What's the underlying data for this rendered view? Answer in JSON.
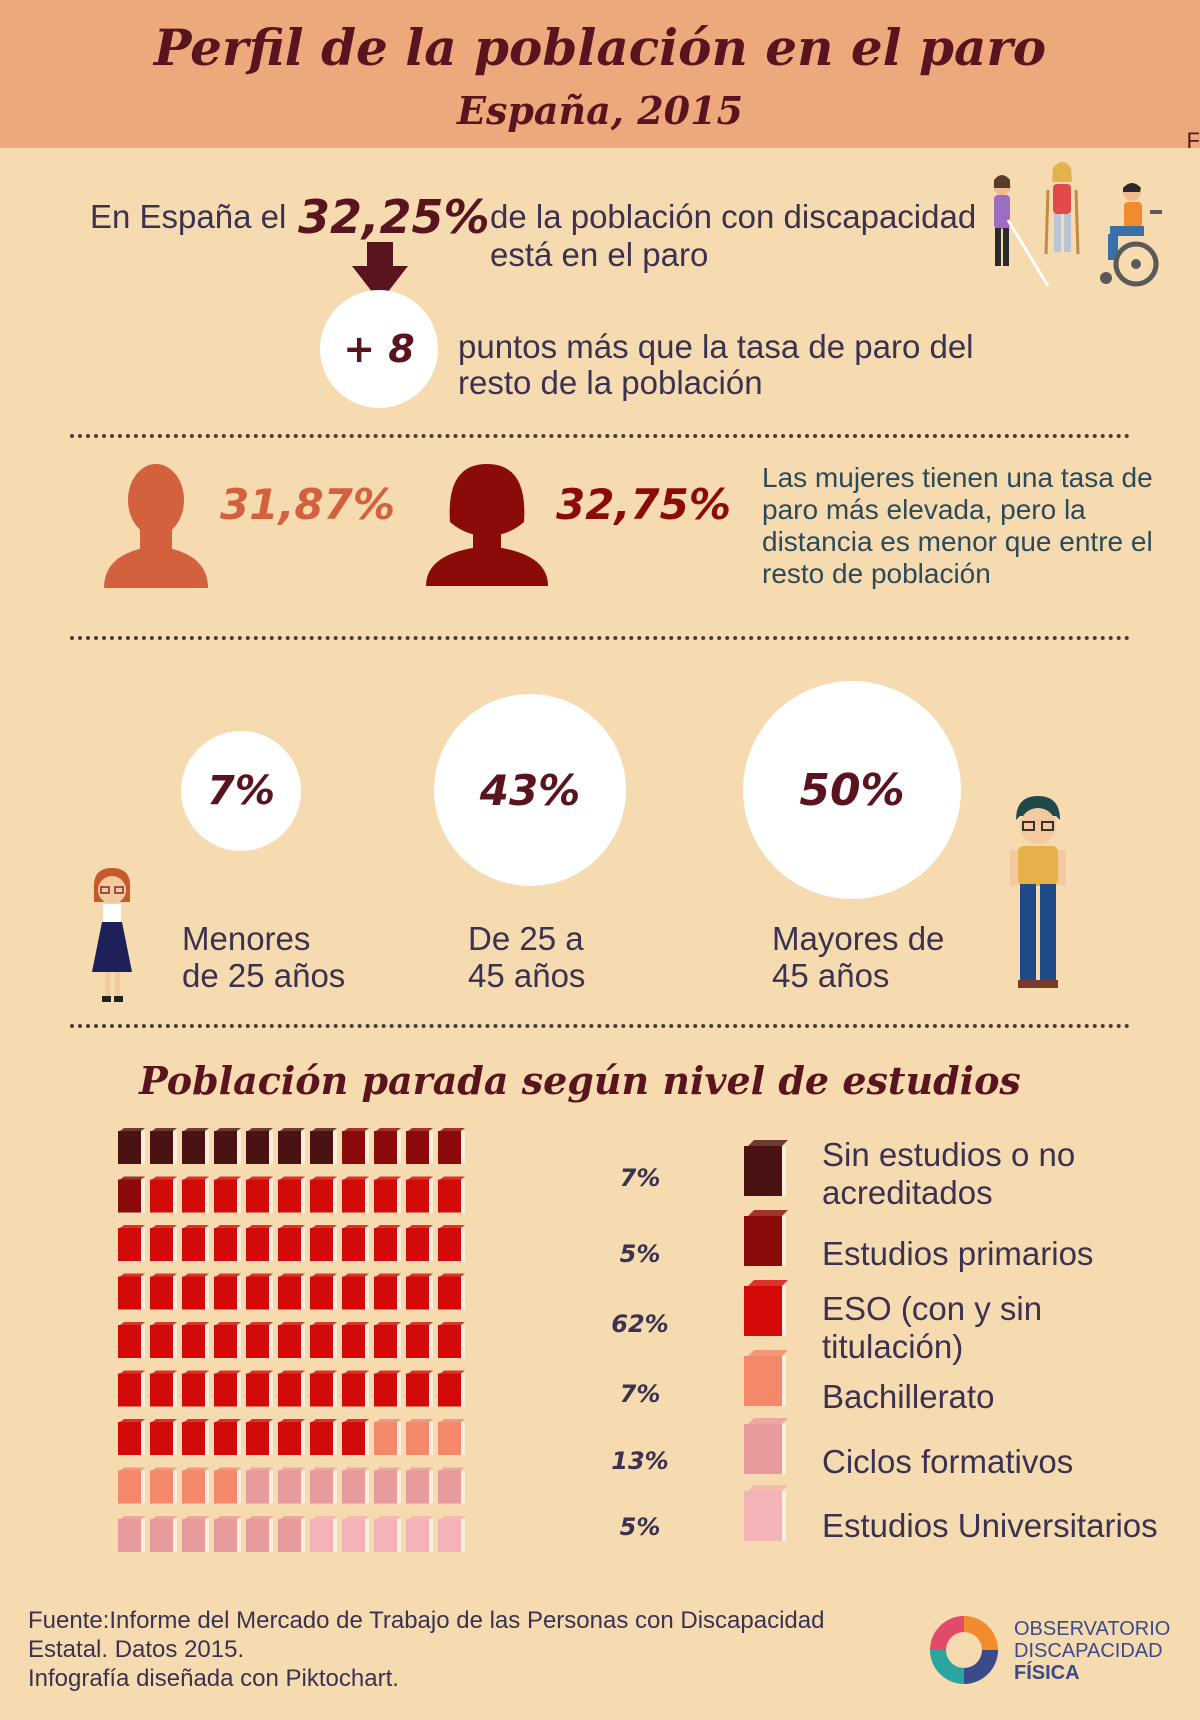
{
  "header": {
    "title": "Perfil de la población en el paro",
    "subtitle": "España, 2015",
    "corner_mark": "F"
  },
  "intro": {
    "prefix": "En España el",
    "percent": "32,25%",
    "suffix_line1": "de la población con discapacidad",
    "suffix_line2": "está en el paro",
    "delta_value": "+ 8",
    "delta_line1": "puntos más que la tasa de paro del",
    "delta_line2": "resto de la población"
  },
  "gender": {
    "male_percent": "31,87%",
    "female_percent": "32,75%",
    "note_lines": [
      "Las mujeres tienen una tasa de",
      "paro más elevada, pero la",
      "distancia es menor que entre el",
      "resto de población"
    ],
    "male_color": "#d4613e",
    "female_color": "#8b0a0a"
  },
  "age": {
    "groups": [
      {
        "percent": "7%",
        "label_line1": "Menores",
        "label_line2": "de 25 años"
      },
      {
        "percent": "43%",
        "label_line1": "De 25 a",
        "label_line2": "45 años"
      },
      {
        "percent": "50%",
        "label_line1": "Mayores de",
        "label_line2": "45 años"
      }
    ]
  },
  "studies": {
    "title": "Población parada según nivel de estudios",
    "legend": [
      {
        "percent": "7%",
        "label_lines": [
          "Sin estudios o no",
          "acreditados"
        ],
        "color": "#4a1212"
      },
      {
        "percent": "5%",
        "label_lines": [
          "Estudios primarios"
        ],
        "color": "#8b0a0a"
      },
      {
        "percent": "62%",
        "label_lines": [
          "ESO (con y sin",
          "titulación)"
        ],
        "color": "#d40a0a"
      },
      {
        "percent": "7%",
        "label_lines": [
          "Bachillerato"
        ],
        "color": "#f5876a"
      },
      {
        "percent": "13%",
        "label_lines": [
          "Ciclos formativos"
        ],
        "color": "#e89a9c"
      },
      {
        "percent": "5%",
        "label_lines": [
          "Estudios Universitarios"
        ],
        "color": "#f4b3b6"
      }
    ]
  },
  "chart_data": {
    "type": "bar",
    "title": "Población parada según nivel de estudios",
    "categories": [
      "Sin estudios o no acreditados",
      "Estudios primarios",
      "ESO (con y sin titulación)",
      "Bachillerato",
      "Ciclos formativos",
      "Estudios Universitarios"
    ],
    "values": [
      7,
      5,
      62,
      7,
      13,
      5
    ],
    "unit": "%",
    "waffle_counts": [
      7,
      5,
      62,
      7,
      13,
      5
    ]
  },
  "footer": {
    "source_lines": [
      "Fuente:Informe del Mercado de Trabajo de las Personas con Discapacidad",
      "Estatal. Datos 2015.",
      "Infografía diseñada con Piktochart."
    ],
    "logo_line1": "OBSERVATORIO",
    "logo_line2": "DISCAPACIDAD",
    "logo_line3": "FÍSICA"
  }
}
